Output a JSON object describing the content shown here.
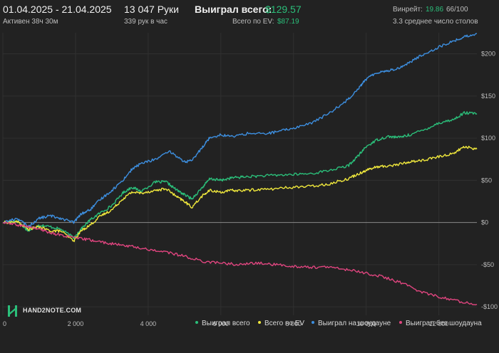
{
  "header": {
    "date_range": "01.04.2025 - 21.04.2025",
    "active_time": "Активен 38ч 30м",
    "hands": "13 047 Руки",
    "hands_per_hour": "339 рук в час",
    "won_total_label": "Выиграл всего:",
    "won_total_value": "$129.57",
    "ev_total_label": "Всего по EV:",
    "ev_total_value": "$87.19",
    "winrate_label": "Винрейт:",
    "winrate_value": "19.86",
    "winrate_suffix": "66/100",
    "avg_tables": "3.3 среднее число столов"
  },
  "logo": {
    "text": "HAND2NOTE.COM",
    "icon": "hand2note-logo-icon"
  },
  "colors": {
    "background": "#222222",
    "grid": "#303030",
    "won": "#2bbf7a",
    "ev": "#f0e83c",
    "showdown": "#3d8fe0",
    "non_showdown": "#e0457f"
  },
  "chart_data": {
    "type": "line",
    "xlim": [
      0,
      13047
    ],
    "ylim": [
      -110,
      225
    ],
    "x_ticks": [
      0,
      2000,
      4000,
      6000,
      8000,
      10000,
      12000
    ],
    "x_tick_labels": [
      "0",
      "2 000",
      "4 000",
      "6 000",
      "8 000",
      "10 000",
      "12 000"
    ],
    "y_ticks": [
      -100,
      -50,
      0,
      50,
      100,
      150,
      200
    ],
    "y_tick_labels": [
      "-$100",
      "-$50",
      "$0",
      "$50",
      "$100",
      "$150",
      "$200"
    ],
    "grid": true,
    "legend_position": "bottom-right",
    "series": [
      {
        "name": "Выиграл всего",
        "color": "#2bbf7a",
        "points": [
          [
            0,
            0
          ],
          [
            400,
            2
          ],
          [
            700,
            -10
          ],
          [
            1000,
            -3
          ],
          [
            1300,
            -5
          ],
          [
            1600,
            -8
          ],
          [
            1950,
            -18
          ],
          [
            2150,
            -8
          ],
          [
            2400,
            3
          ],
          [
            2700,
            12
          ],
          [
            3000,
            20
          ],
          [
            3300,
            35
          ],
          [
            3550,
            42
          ],
          [
            3800,
            37
          ],
          [
            4200,
            48
          ],
          [
            4500,
            48
          ],
          [
            4800,
            38
          ],
          [
            5000,
            33
          ],
          [
            5200,
            28
          ],
          [
            5500,
            42
          ],
          [
            5700,
            52
          ],
          [
            6000,
            50
          ],
          [
            6300,
            53
          ],
          [
            6600,
            54
          ],
          [
            7000,
            55
          ],
          [
            7500,
            56
          ],
          [
            8000,
            57
          ],
          [
            8500,
            58
          ],
          [
            9000,
            62
          ],
          [
            9500,
            67
          ],
          [
            9800,
            80
          ],
          [
            10000,
            90
          ],
          [
            10300,
            98
          ],
          [
            10600,
            102
          ],
          [
            10900,
            101
          ],
          [
            11200,
            104
          ],
          [
            11600,
            110
          ],
          [
            12000,
            118
          ],
          [
            12400,
            122
          ],
          [
            12700,
            130
          ],
          [
            13047,
            129
          ]
        ]
      },
      {
        "name": "Всего по EV",
        "color": "#f0e83c",
        "points": [
          [
            0,
            0
          ],
          [
            400,
            1
          ],
          [
            700,
            -8
          ],
          [
            1000,
            -5
          ],
          [
            1300,
            -10
          ],
          [
            1600,
            -10
          ],
          [
            1950,
            -22
          ],
          [
            2150,
            -10
          ],
          [
            2400,
            -3
          ],
          [
            2700,
            8
          ],
          [
            3000,
            15
          ],
          [
            3300,
            28
          ],
          [
            3550,
            36
          ],
          [
            3800,
            35
          ],
          [
            4200,
            38
          ],
          [
            4500,
            40
          ],
          [
            4800,
            30
          ],
          [
            5000,
            25
          ],
          [
            5200,
            18
          ],
          [
            5500,
            32
          ],
          [
            5700,
            38
          ],
          [
            6000,
            36
          ],
          [
            6300,
            38
          ],
          [
            6600,
            38
          ],
          [
            7000,
            39
          ],
          [
            7500,
            40
          ],
          [
            8000,
            42
          ],
          [
            8500,
            43
          ],
          [
            9000,
            46
          ],
          [
            9500,
            52
          ],
          [
            9800,
            58
          ],
          [
            10000,
            62
          ],
          [
            10300,
            66
          ],
          [
            10600,
            67
          ],
          [
            10900,
            69
          ],
          [
            11200,
            72
          ],
          [
            11600,
            74
          ],
          [
            12000,
            78
          ],
          [
            12400,
            82
          ],
          [
            12700,
            90
          ],
          [
            13047,
            87
          ]
        ]
      },
      {
        "name": "Выиграл на шоудауне",
        "color": "#3d8fe0",
        "points": [
          [
            0,
            0
          ],
          [
            400,
            5
          ],
          [
            700,
            -5
          ],
          [
            1000,
            5
          ],
          [
            1300,
            8
          ],
          [
            1600,
            5
          ],
          [
            1950,
            0
          ],
          [
            2150,
            10
          ],
          [
            2400,
            15
          ],
          [
            2700,
            28
          ],
          [
            3000,
            38
          ],
          [
            3300,
            50
          ],
          [
            3550,
            63
          ],
          [
            3800,
            70
          ],
          [
            4200,
            75
          ],
          [
            4600,
            84
          ],
          [
            5000,
            72
          ],
          [
            5200,
            73
          ],
          [
            5500,
            90
          ],
          [
            5700,
            101
          ],
          [
            6000,
            104
          ],
          [
            6300,
            102
          ],
          [
            6800,
            106
          ],
          [
            7200,
            105
          ],
          [
            7600,
            108
          ],
          [
            8000,
            112
          ],
          [
            8500,
            118
          ],
          [
            9000,
            130
          ],
          [
            9500,
            146
          ],
          [
            9800,
            160
          ],
          [
            10000,
            170
          ],
          [
            10300,
            178
          ],
          [
            10600,
            180
          ],
          [
            10900,
            183
          ],
          [
            11200,
            190
          ],
          [
            11600,
            200
          ],
          [
            12000,
            208
          ],
          [
            12400,
            215
          ],
          [
            12700,
            220
          ],
          [
            13047,
            224
          ]
        ]
      },
      {
        "name": "Выиграл без шоудауна",
        "color": "#e0457f",
        "points": [
          [
            0,
            0
          ],
          [
            400,
            -3
          ],
          [
            700,
            -5
          ],
          [
            1000,
            -8
          ],
          [
            1300,
            -12
          ],
          [
            1600,
            -15
          ],
          [
            1950,
            -18
          ],
          [
            2300,
            -20
          ],
          [
            2700,
            -23
          ],
          [
            3100,
            -26
          ],
          [
            3500,
            -28
          ],
          [
            4000,
            -32
          ],
          [
            4500,
            -35
          ],
          [
            5000,
            -40
          ],
          [
            5500,
            -46
          ],
          [
            6000,
            -48
          ],
          [
            6500,
            -50
          ],
          [
            7000,
            -48
          ],
          [
            7500,
            -50
          ],
          [
            8000,
            -52
          ],
          [
            8500,
            -53
          ],
          [
            9000,
            -53
          ],
          [
            9500,
            -56
          ],
          [
            10000,
            -60
          ],
          [
            10500,
            -65
          ],
          [
            11000,
            -72
          ],
          [
            11500,
            -82
          ],
          [
            12000,
            -88
          ],
          [
            12500,
            -93
          ],
          [
            13047,
            -97
          ]
        ]
      }
    ]
  }
}
